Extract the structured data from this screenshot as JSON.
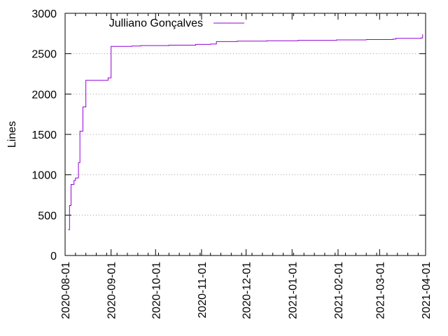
{
  "chart_data": {
    "type": "line",
    "xlabel": "",
    "ylabel": "Lines",
    "ylim": [
      0,
      3000
    ],
    "xlim": [
      "2020-08-01",
      "2021-04-01"
    ],
    "x_ticks": [
      "2020-08-01",
      "2020-09-01",
      "2020-10-01",
      "2020-11-01",
      "2020-12-01",
      "2021-01-01",
      "2021-02-01",
      "2021-03-01",
      "2021-04-01"
    ],
    "y_ticks": [
      0,
      500,
      1000,
      1500,
      2000,
      2500,
      3000
    ],
    "grid": "horizontal dotted",
    "legend_position": "top-left",
    "series": [
      {
        "name": "Julliano Gonçalves",
        "color": "#9400d3",
        "points": [
          [
            "2020-08-03",
            320
          ],
          [
            "2020-08-04",
            620
          ],
          [
            "2020-08-05",
            880
          ],
          [
            "2020-08-07",
            930
          ],
          [
            "2020-08-08",
            960
          ],
          [
            "2020-08-10",
            1150
          ],
          [
            "2020-08-11",
            1300
          ],
          [
            "2020-08-11",
            1540
          ],
          [
            "2020-08-13",
            1570
          ],
          [
            "2020-08-13",
            1840
          ],
          [
            "2020-08-15",
            1850
          ],
          [
            "2020-08-15",
            2170
          ],
          [
            "2020-08-28",
            2170
          ],
          [
            "2020-08-30",
            2200
          ],
          [
            "2020-09-01",
            2590
          ],
          [
            "2020-09-15",
            2595
          ],
          [
            "2020-09-21",
            2600
          ],
          [
            "2020-10-10",
            2605
          ],
          [
            "2020-10-28",
            2615
          ],
          [
            "2020-11-07",
            2620
          ],
          [
            "2020-11-11",
            2650
          ],
          [
            "2020-11-25",
            2655
          ],
          [
            "2020-12-15",
            2660
          ],
          [
            "2021-01-05",
            2665
          ],
          [
            "2021-01-31",
            2670
          ],
          [
            "2021-02-20",
            2675
          ],
          [
            "2021-03-10",
            2680
          ],
          [
            "2021-03-12",
            2690
          ],
          [
            "2021-03-29",
            2695
          ],
          [
            "2021-03-30",
            2740
          ]
        ]
      }
    ]
  }
}
